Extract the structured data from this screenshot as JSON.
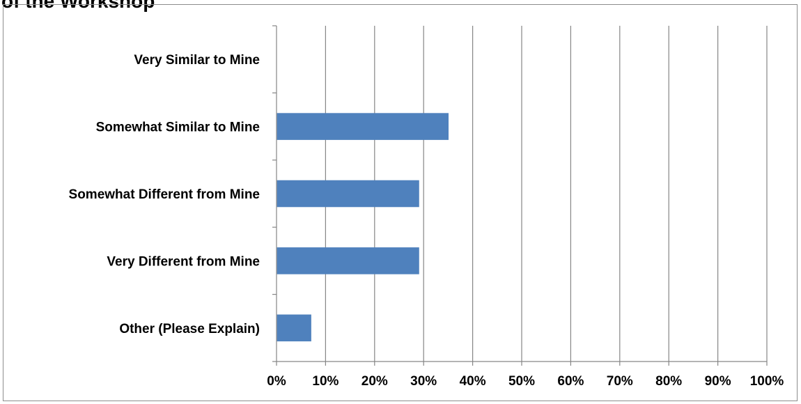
{
  "title_fragment": "of the Workshop",
  "chart_data": {
    "type": "bar",
    "orientation": "horizontal",
    "categories": [
      "Very Similar to Mine",
      "Somewhat Similar to Mine",
      "Somewhat Different from Mine",
      "Very Different from Mine",
      "Other (Please Explain)"
    ],
    "values": [
      0,
      35,
      29,
      29,
      7
    ],
    "value_unit": "%",
    "xlim": [
      0,
      100
    ],
    "x_ticks": [
      0,
      10,
      20,
      30,
      40,
      50,
      60,
      70,
      80,
      90,
      100
    ],
    "x_tick_labels": [
      "0%",
      "10%",
      "20%",
      "30%",
      "40%",
      "50%",
      "60%",
      "70%",
      "80%",
      "90%",
      "100%"
    ],
    "grid": "vertical",
    "legend": "none",
    "bar_color": "#4f81bd",
    "grid_color": "#868686"
  }
}
